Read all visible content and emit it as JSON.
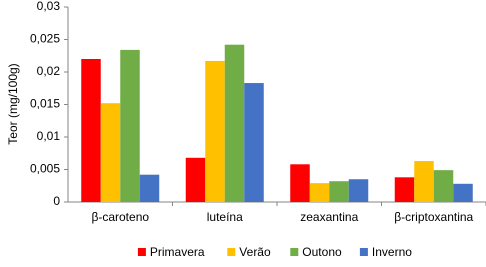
{
  "chart_data": {
    "type": "bar",
    "y_label": "Teor (mg/100g)",
    "categories": [
      "β-caroteno",
      "luteína",
      "zeaxantina",
      "β-criptoxantina"
    ],
    "series": [
      {
        "name": "Primavera",
        "color": "#ff0000",
        "values": [
          0.022,
          0.0068,
          0.0058,
          0.0038
        ]
      },
      {
        "name": "Verão",
        "color": "#ffc000",
        "values": [
          0.0152,
          0.0217,
          0.0029,
          0.0063
        ]
      },
      {
        "name": "Outono",
        "color": "#70ad47",
        "values": [
          0.0234,
          0.0242,
          0.0032,
          0.0049
        ]
      },
      {
        "name": "Inverno",
        "color": "#4472c4",
        "values": [
          0.0042,
          0.0183,
          0.0035,
          0.0028
        ]
      }
    ],
    "ylim": [
      0,
      0.03
    ],
    "yticks": [
      0,
      {
        "value": 0.005,
        "label": "0,005"
      },
      {
        "value": 0.01,
        "label": "0,01"
      },
      {
        "value": 0.015,
        "label": "0,015"
      },
      {
        "value": 0.02,
        "label": "0,02"
      },
      {
        "value": 0.025,
        "label": "0,025"
      },
      {
        "value": 0.03,
        "label": "0,03"
      }
    ],
    "grid": false,
    "legend": "bottom"
  }
}
